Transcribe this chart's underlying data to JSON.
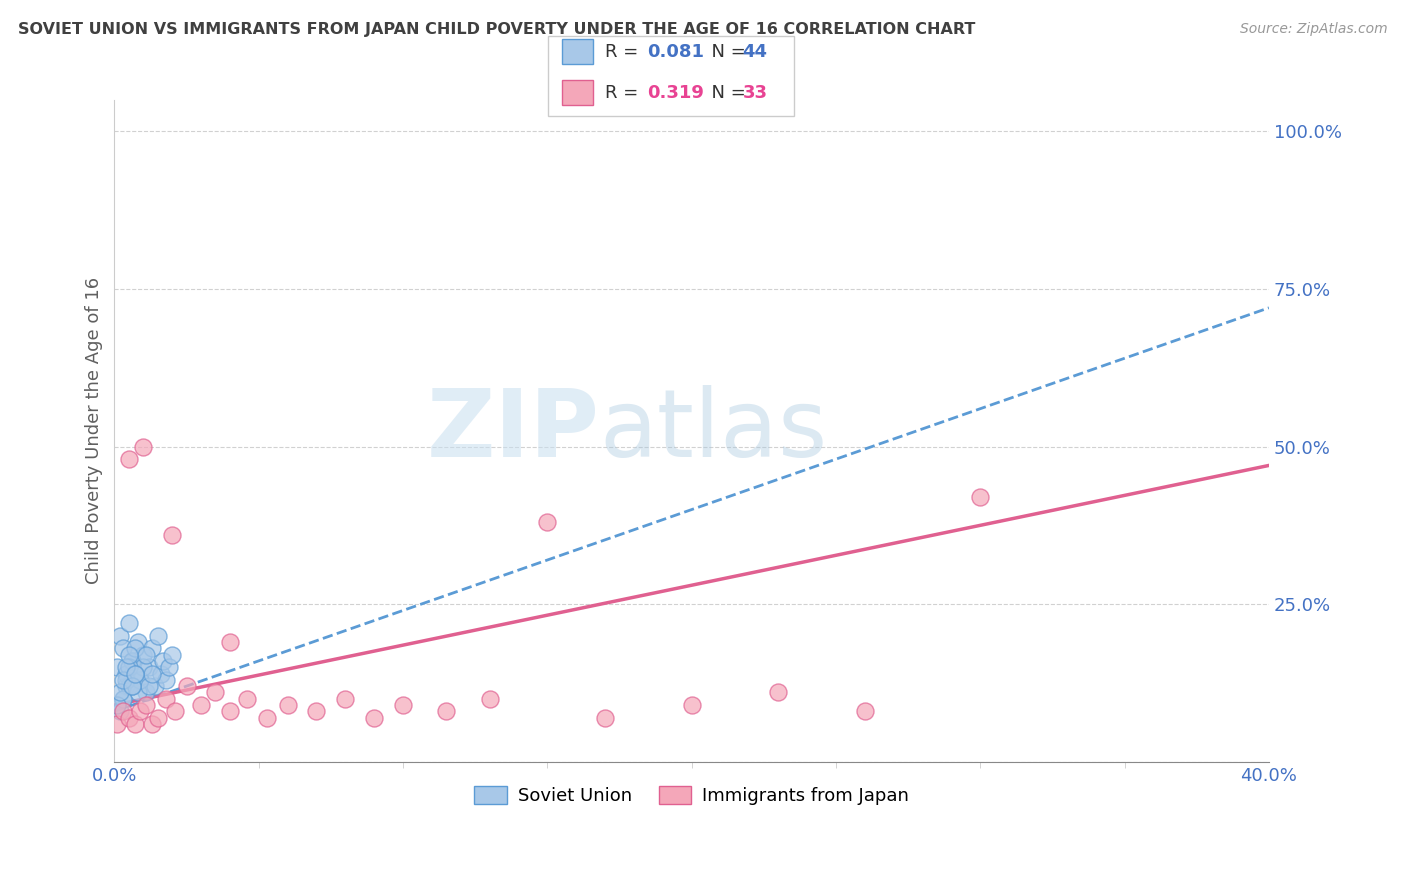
{
  "title": "SOVIET UNION VS IMMIGRANTS FROM JAPAN CHILD POVERTY UNDER THE AGE OF 16 CORRELATION CHART",
  "source": "Source: ZipAtlas.com",
  "ylabel": "Child Poverty Under the Age of 16",
  "xlim": [
    0.0,
    0.4
  ],
  "ylim": [
    0.0,
    1.05
  ],
  "yticks": [
    0.0,
    0.25,
    0.5,
    0.75,
    1.0
  ],
  "ytick_labels": [
    "",
    "25.0%",
    "50.0%",
    "75.0%",
    "100.0%"
  ],
  "xtick_labels": [
    "0.0%",
    "40.0%"
  ],
  "soviet_color": "#a8c8e8",
  "soviet_edge_color": "#5b9bd5",
  "japan_color": "#f4a7b9",
  "japan_edge_color": "#e06090",
  "soviet_trend_color": "#5b9bd5",
  "japan_trend_color": "#e06090",
  "background_color": "#ffffff",
  "grid_color": "#cccccc",
  "title_color": "#404040",
  "axis_label_color": "#606060",
  "tick_color": "#4472c4",
  "legend_text_color": "#333333",
  "legend_value_color": "#4472c4",
  "legend_japan_value_color": "#e84393",
  "watermark_color": "#daeaf5",
  "soviet_union_data_x": [
    0.001,
    0.002,
    0.003,
    0.004,
    0.005,
    0.006,
    0.007,
    0.008,
    0.009,
    0.01,
    0.011,
    0.012,
    0.013,
    0.014,
    0.015,
    0.016,
    0.017,
    0.018,
    0.019,
    0.02,
    0.003,
    0.004,
    0.005,
    0.006,
    0.007,
    0.008,
    0.009,
    0.01,
    0.011,
    0.012,
    0.013,
    0.002,
    0.003,
    0.004,
    0.005,
    0.006,
    0.007,
    0.001,
    0.002,
    0.003,
    0.004,
    0.005,
    0.006,
    0.007
  ],
  "soviet_union_data_y": [
    0.15,
    0.2,
    0.18,
    0.12,
    0.22,
    0.16,
    0.14,
    0.19,
    0.13,
    0.17,
    0.11,
    0.15,
    0.18,
    0.12,
    0.2,
    0.14,
    0.16,
    0.13,
    0.15,
    0.17,
    0.1,
    0.14,
    0.12,
    0.16,
    0.18,
    0.11,
    0.13,
    0.15,
    0.17,
    0.12,
    0.14,
    0.08,
    0.1,
    0.13,
    0.15,
    0.12,
    0.14,
    0.09,
    0.11,
    0.13,
    0.15,
    0.17,
    0.12,
    0.14
  ],
  "japan_data_x": [
    0.001,
    0.003,
    0.005,
    0.007,
    0.009,
    0.011,
    0.013,
    0.015,
    0.018,
    0.021,
    0.025,
    0.03,
    0.035,
    0.04,
    0.046,
    0.053,
    0.06,
    0.07,
    0.08,
    0.09,
    0.1,
    0.115,
    0.13,
    0.15,
    0.17,
    0.2,
    0.23,
    0.26,
    0.3,
    0.005,
    0.01,
    0.02,
    0.04
  ],
  "japan_data_y": [
    0.06,
    0.08,
    0.07,
    0.06,
    0.08,
    0.09,
    0.06,
    0.07,
    0.1,
    0.08,
    0.12,
    0.09,
    0.11,
    0.08,
    0.1,
    0.07,
    0.09,
    0.08,
    0.1,
    0.07,
    0.09,
    0.08,
    0.1,
    0.38,
    0.07,
    0.09,
    0.11,
    0.08,
    0.42,
    0.48,
    0.5,
    0.36,
    0.19
  ]
}
